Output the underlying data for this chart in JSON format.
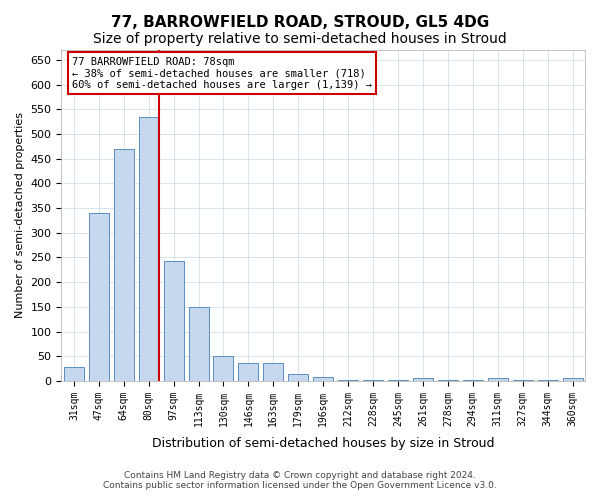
{
  "title": "77, BARROWFIELD ROAD, STROUD, GL5 4DG",
  "subtitle": "Size of property relative to semi-detached houses in Stroud",
  "xlabel": "Distribution of semi-detached houses by size in Stroud",
  "ylabel": "Number of semi-detached properties",
  "categories": [
    "31sqm",
    "47sqm",
    "64sqm",
    "80sqm",
    "97sqm",
    "113sqm",
    "130sqm",
    "146sqm",
    "163sqm",
    "179sqm",
    "196sqm",
    "212sqm",
    "228sqm",
    "245sqm",
    "261sqm",
    "278sqm",
    "294sqm",
    "311sqm",
    "327sqm",
    "344sqm",
    "360sqm"
  ],
  "values": [
    28,
    340,
    470,
    535,
    243,
    150,
    50,
    37,
    37,
    13,
    7,
    2,
    1,
    1,
    5,
    1,
    1,
    5,
    1,
    1,
    5
  ],
  "bar_color": "#c5d8ed",
  "bar_edge_color": "#5a8fc0",
  "highlight_index": 3,
  "highlight_line_color": "#cc0000",
  "ylim": [
    0,
    670
  ],
  "yticks": [
    0,
    50,
    100,
    150,
    200,
    250,
    300,
    350,
    400,
    450,
    500,
    550,
    600,
    650
  ],
  "annotation_title": "77 BARROWFIELD ROAD: 78sqm",
  "annotation_line1": "← 38% of semi-detached houses are smaller (718)",
  "annotation_line2": "60% of semi-detached houses are larger (1,139) →",
  "annotation_box_color": "#ffffff",
  "annotation_box_edge": "#cc0000",
  "footer1": "Contains HM Land Registry data © Crown copyright and database right 2024.",
  "footer2": "Contains public sector information licensed under the Open Government Licence v3.0.",
  "bg_color": "#ffffff",
  "grid_color": "#c8d8e8",
  "title_fontsize": 11,
  "subtitle_fontsize": 10
}
